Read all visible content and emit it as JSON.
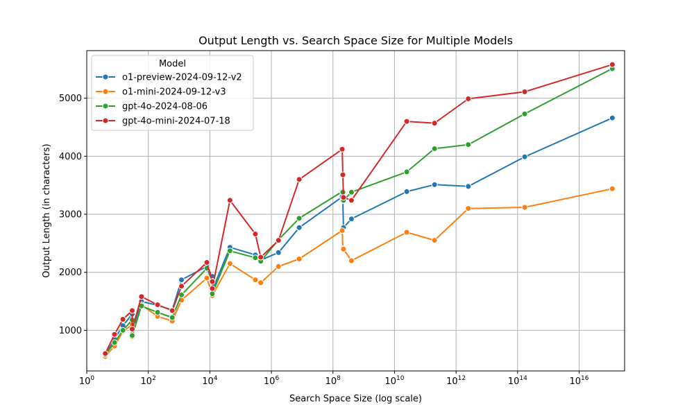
{
  "chart_data": {
    "type": "line",
    "title": "Output Length vs. Search Space Size for Multiple Models",
    "xlabel": "Search Space Size (log scale)",
    "ylabel": "Output Length (in characters)",
    "x_scale": "log10",
    "xlim": [
      1,
      3e+17
    ],
    "ylim": [
      300,
      5820
    ],
    "x_ticks": [
      {
        "value": 1,
        "base": "10",
        "exp": "0"
      },
      {
        "value": 100,
        "base": "10",
        "exp": "2"
      },
      {
        "value": 10000,
        "base": "10",
        "exp": "4"
      },
      {
        "value": 1000000,
        "base": "10",
        "exp": "6"
      },
      {
        "value": 100000000,
        "base": "10",
        "exp": "8"
      },
      {
        "value": 10000000000,
        "base": "10",
        "exp": "10"
      },
      {
        "value": 1000000000000,
        "base": "10",
        "exp": "12"
      },
      {
        "value": 100000000000000,
        "base": "10",
        "exp": "14"
      },
      {
        "value": 10000000000000000,
        "base": "10",
        "exp": "16"
      }
    ],
    "y_ticks": [
      1000,
      2000,
      3000,
      4000,
      5000
    ],
    "grid": true,
    "legend": {
      "title": "Model",
      "placement": "upper-left"
    },
    "x": [
      4,
      8,
      15,
      30,
      30,
      60,
      200,
      600,
      1200,
      8000,
      12000,
      12000,
      45000,
      300000,
      450000,
      1700000,
      8000000,
      200000000,
      210000000,
      220000000,
      400000000,
      25000000000,
      200000000000,
      2500000000000,
      170000000000000,
      120000000000000000
    ],
    "series": [
      {
        "name": "o1-preview-2024-09-12-v2",
        "color": "#1f77b4",
        "values": [
          570,
          850,
          1080,
          1280,
          930,
          1500,
          1430,
          1350,
          1870,
          2100,
          1930,
          1690,
          2430,
          2300,
          2210,
          2340,
          2770,
          3300,
          3230,
          2770,
          2920,
          3390,
          3510,
          3480,
          3990,
          4660
        ]
      },
      {
        "name": "o1-mini-2024-09-12-v3",
        "color": "#ff7f0e",
        "values": [
          550,
          730,
          980,
          1100,
          890,
          1440,
          1240,
          1160,
          1520,
          1900,
          1610,
          1600,
          2150,
          1870,
          1820,
          2100,
          2230,
          2720,
          2410,
          2400,
          2200,
          2690,
          2550,
          3100,
          3120,
          3440
        ]
      },
      {
        "name": "gpt-4o-2024-08-06",
        "color": "#2ca02c",
        "values": [
          580,
          790,
          1000,
          1180,
          910,
          1420,
          1310,
          1220,
          1610,
          2070,
          1850,
          1630,
          2370,
          2250,
          2190,
          2560,
          2930,
          3390,
          3380,
          3240,
          3380,
          3730,
          4130,
          4200,
          4730,
          5510
        ]
      },
      {
        "name": "gpt-4o-mini-2024-07-18",
        "color": "#d62728",
        "values": [
          600,
          930,
          1190,
          1340,
          1020,
          1580,
          1440,
          1340,
          1760,
          2170,
          1840,
          1720,
          3240,
          2660,
          2260,
          2550,
          3600,
          4120,
          3680,
          3290,
          3240,
          4600,
          4570,
          4990,
          5110,
          5580
        ]
      }
    ]
  }
}
